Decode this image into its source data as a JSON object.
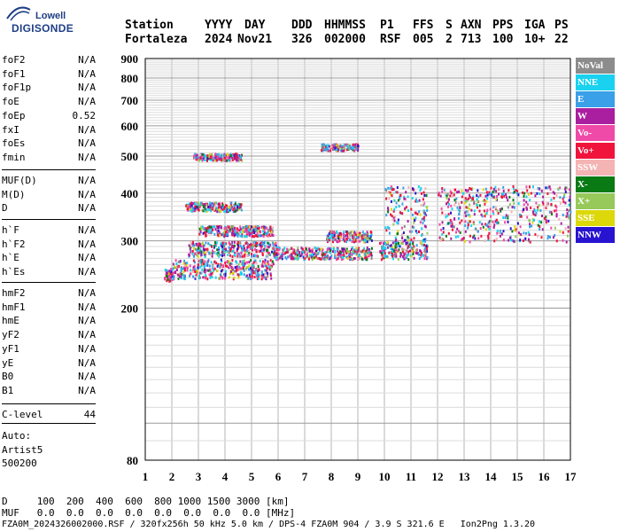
{
  "logo": {
    "line1": "Lowell",
    "line2": "DIGISONDE"
  },
  "header": {
    "labels": [
      "Station",
      "YYYY",
      "DAY",
      "DDD",
      "HHMMSS",
      "P1",
      "FFS",
      "S",
      "AXN",
      "PPS",
      "IGA",
      "PS"
    ],
    "values": [
      "Fortaleza",
      "2024",
      "Nov21",
      "326",
      "002000",
      "RSF",
      "005",
      "2",
      "713",
      "100",
      "10+",
      "22"
    ]
  },
  "params": {
    "group1": [
      [
        "foF2",
        "N/A"
      ],
      [
        "foF1",
        "N/A"
      ],
      [
        "foF1p",
        "N/A"
      ],
      [
        "foE",
        "N/A"
      ],
      [
        "foEp",
        "0.52"
      ],
      [
        "fxI",
        "N/A"
      ],
      [
        "foEs",
        "N/A"
      ],
      [
        "fmin",
        "N/A"
      ]
    ],
    "group2": [
      [
        "MUF(D)",
        "N/A"
      ],
      [
        "M(D)",
        "N/A"
      ],
      [
        "D",
        "N/A"
      ]
    ],
    "group3": [
      [
        "h`F",
        "N/A"
      ],
      [
        "h`F2",
        "N/A"
      ],
      [
        "h`E",
        "N/A"
      ],
      [
        "h`Es",
        "N/A"
      ]
    ],
    "group4": [
      [
        "hmF2",
        "N/A"
      ],
      [
        "hmF1",
        "N/A"
      ],
      [
        "hmE",
        "N/A"
      ],
      [
        "yF2",
        "N/A"
      ],
      [
        "yF1",
        "N/A"
      ],
      [
        "yE",
        "N/A"
      ],
      [
        "B0",
        "N/A"
      ],
      [
        "B1",
        "N/A"
      ]
    ],
    "group5": [
      [
        "C-level",
        "44"
      ]
    ]
  },
  "auto": [
    "Auto:",
    "Artist5",
    "500200"
  ],
  "legend": [
    {
      "label": "NoVal",
      "color": "#8c8c8c"
    },
    {
      "label": "NNE",
      "color": "#1ad2f0"
    },
    {
      "label": "E",
      "color": "#3aa0e8"
    },
    {
      "label": "W",
      "color": "#aa1ea0"
    },
    {
      "label": "Vo-",
      "color": "#f04aa8"
    },
    {
      "label": "Vo+",
      "color": "#f0143c"
    },
    {
      "label": "SSW",
      "color": "#f5b4b4"
    },
    {
      "label": "X-",
      "color": "#0a7a14"
    },
    {
      "label": "X+",
      "color": "#96c85a"
    },
    {
      "label": "SSE",
      "color": "#dcd80a"
    },
    {
      "label": "NNW",
      "color": "#2814d0"
    }
  ],
  "footer": {
    "d_row": "D     100  200  400  600  800 1000 1500 3000 [km]",
    "muf_row": "MUF   0.0  0.0  0.0  0.0  0.0  0.0  0.0  0.0 [MHz]",
    "info": "FZA0M_2024326002000.RSF / 320fx256h 50 kHz 5.0 km / DPS-4 FZA0M 904 / 3.9 S 321.6 E   Ion2Png 1.3.20"
  },
  "chart_data": {
    "type": "scatter",
    "xlim": [
      1,
      17
    ],
    "ylim": [
      80,
      900
    ],
    "yscale": "log",
    "x_ticks": [
      1,
      2,
      3,
      4,
      5,
      6,
      7,
      8,
      9,
      10,
      11,
      12,
      13,
      14,
      15,
      16,
      17
    ],
    "y_ticks": [
      80,
      200,
      300,
      400,
      500,
      600,
      700,
      800,
      900
    ],
    "grid": true,
    "series_description": "Ionogram echoes colored by arrival direction",
    "traces": [
      {
        "x": [
          1.7,
          2.0
        ],
        "y": [
          235,
          255
        ]
      },
      {
        "x": [
          2.0,
          5.8
        ],
        "y": [
          240,
          270
        ]
      },
      {
        "x": [
          2.6,
          6.0
        ],
        "y": [
          275,
          300
        ]
      },
      {
        "x": [
          3.0,
          5.8
        ],
        "y": [
          310,
          330
        ]
      },
      {
        "x": [
          2.5,
          4.6
        ],
        "y": [
          360,
          380
        ]
      },
      {
        "x": [
          5.8,
          9.5
        ],
        "y": [
          270,
          290
        ]
      },
      {
        "x": [
          7.8,
          9.5
        ],
        "y": [
          300,
          320
        ]
      },
      {
        "x": [
          9.8,
          11.6
        ],
        "y": [
          270,
          300
        ]
      },
      {
        "x": [
          10.0,
          11.6
        ],
        "y": [
          300,
          420
        ]
      },
      {
        "x": [
          12.0,
          17.0
        ],
        "y": [
          300,
          420
        ]
      },
      {
        "x": [
          2.8,
          4.6
        ],
        "y": [
          490,
          510
        ]
      },
      {
        "x": [
          7.6,
          9.0
        ],
        "y": [
          520,
          540
        ]
      }
    ],
    "xlabel": "",
    "ylabel": ""
  }
}
